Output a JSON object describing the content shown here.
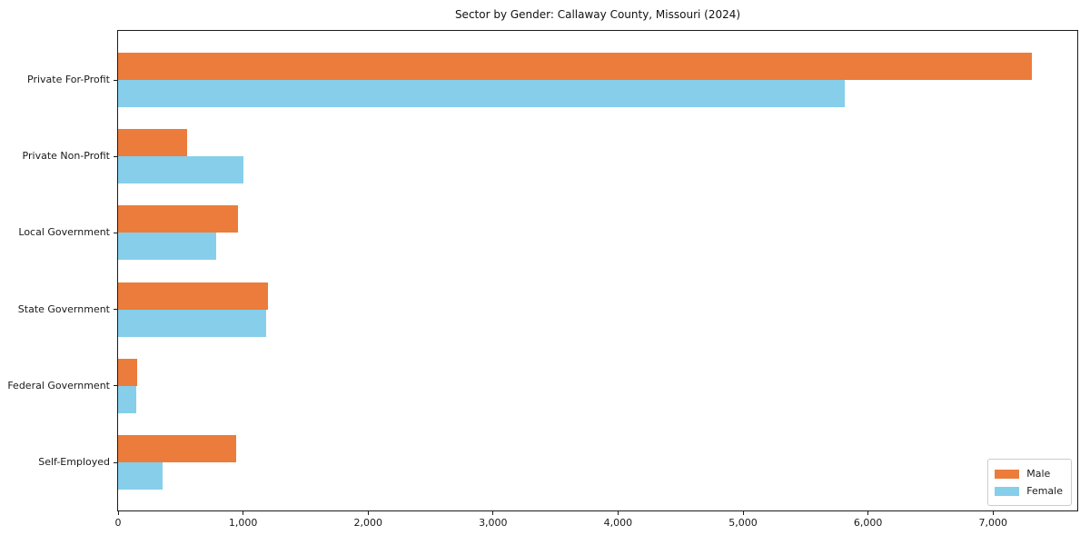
{
  "chart_data": {
    "type": "bar",
    "orientation": "horizontal",
    "title": "Sector by Gender: Callaway County, Missouri (2024)",
    "categories": [
      "Private For-Profit",
      "Private Non-Profit",
      "Local Government",
      "State Government",
      "Federal Government",
      "Self-Employed"
    ],
    "series": [
      {
        "name": "Male",
        "color": "#EC7C3B",
        "values": [
          7310,
          552,
          959,
          1197,
          150,
          944
        ]
      },
      {
        "name": "Female",
        "color": "#87CEEB",
        "values": [
          5810,
          1003,
          785,
          1185,
          148,
          356
        ]
      }
    ],
    "xlabel": "",
    "ylabel": "",
    "xlim": [
      0,
      7674
    ],
    "x_ticks": [
      0,
      1000,
      2000,
      3000,
      4000,
      5000,
      6000,
      7000
    ],
    "x_tick_labels": [
      "0",
      "1,000",
      "2,000",
      "3,000",
      "4,000",
      "5,000",
      "6,000",
      "7,000"
    ],
    "grid": false,
    "legend_position": "lower right",
    "axis_color": "#1a1a1a",
    "background_color": "#ffffff"
  }
}
